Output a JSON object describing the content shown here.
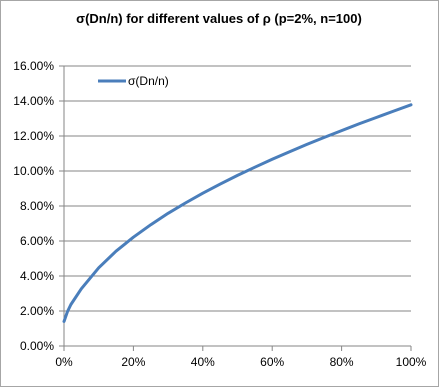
{
  "chart_data": {
    "type": "line",
    "title": "σ(Dn/n) for different values of ρ (p=2%, n=100)",
    "xlabel": "",
    "ylabel": "",
    "x_ticks": [
      "0%",
      "20%",
      "40%",
      "60%",
      "80%",
      "100%"
    ],
    "y_ticks": [
      "0.00%",
      "2.00%",
      "4.00%",
      "6.00%",
      "8.00%",
      "10.00%",
      "12.00%",
      "14.00%",
      "16.00%"
    ],
    "xlim": [
      0,
      1
    ],
    "ylim": [
      0,
      0.16
    ],
    "grid": "horizontal",
    "legend_position": "top-left",
    "series": [
      {
        "name": "σ(Dn/n)",
        "color": "#4a7ebb",
        "x": [
          0,
          0.01,
          0.02,
          0.05,
          0.1,
          0.15,
          0.2,
          0.25,
          0.3,
          0.35,
          0.4,
          0.45,
          0.5,
          0.55,
          0.6,
          0.65,
          0.7,
          0.75,
          0.8,
          0.85,
          0.9,
          0.95,
          1.0
        ],
        "y": [
          0.014,
          0.0197,
          0.0237,
          0.0327,
          0.0447,
          0.0542,
          0.0622,
          0.0693,
          0.0758,
          0.0817,
          0.0873,
          0.0925,
          0.0975,
          0.1022,
          0.1067,
          0.111,
          0.1152,
          0.1192,
          0.1231,
          0.1269,
          0.1306,
          0.1342,
          0.1378
        ]
      }
    ]
  }
}
